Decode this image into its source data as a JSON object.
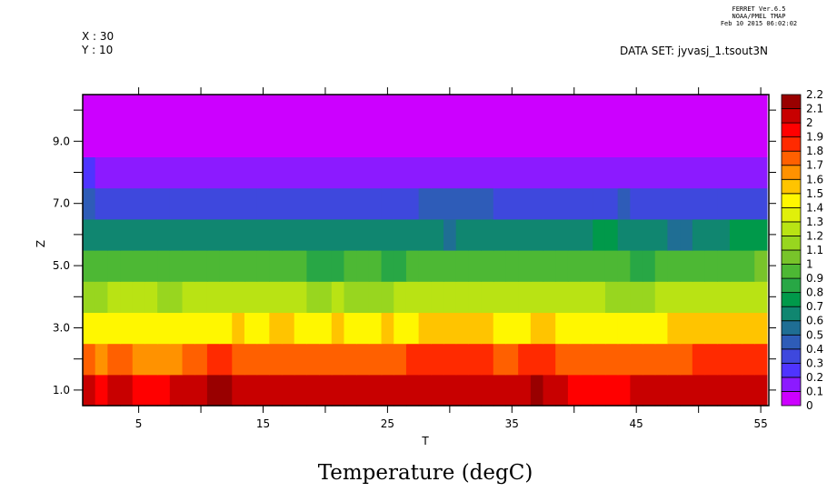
{
  "header": {
    "ferret_lines": [
      "FERRET  Ver.6.5",
      "NOAA/PMEL TMAP",
      "Feb 10 2015 06:02:02"
    ],
    "x_label": "X : 30",
    "y_label": "Y : 10",
    "dataset": "DATA SET: jyvasj_1.tsout3N"
  },
  "chart_data": {
    "type": "heatmap",
    "title": "Temperature (degC)",
    "xlabel": "T",
    "ylabel": "Z",
    "xlim": [
      0.5,
      55.65
    ],
    "ylim": [
      0.5,
      10.5
    ],
    "x_ticks": [
      5,
      15,
      25,
      35,
      45,
      55
    ],
    "x_tick_labels": [
      "5",
      "15",
      "25",
      "35",
      "45",
      "55"
    ],
    "x_minor_ticks": [
      10,
      20,
      30,
      40,
      50
    ],
    "y_ticks": [
      1,
      3,
      5,
      7,
      9
    ],
    "y_tick_labels": [
      "1.0",
      "3.0",
      "5.0",
      "7.0",
      "9.0"
    ],
    "y_minor_ticks": [
      2,
      4,
      6,
      8,
      10
    ],
    "x": "T = 1..55",
    "z_levels": [
      1,
      2,
      3,
      4,
      5,
      6,
      7,
      8,
      9,
      10
    ],
    "rows_run_length_note": "each row = [value, count] runs along T from 1 to 55",
    "rows": [
      [
        [
          2.05,
          1
        ],
        [
          1.95,
          1
        ],
        [
          2.05,
          2
        ],
        [
          1.95,
          3
        ],
        [
          2.05,
          3
        ],
        [
          2.15,
          2
        ],
        [
          2.05,
          24
        ],
        [
          2.15,
          1
        ],
        [
          2.05,
          2
        ],
        [
          1.95,
          5
        ],
        [
          2.05,
          11
        ]
      ],
      [
        [
          1.75,
          1
        ],
        [
          1.65,
          1
        ],
        [
          1.75,
          2
        ],
        [
          1.65,
          4
        ],
        [
          1.75,
          2
        ],
        [
          1.85,
          2
        ],
        [
          1.75,
          14
        ],
        [
          1.85,
          7
        ],
        [
          1.75,
          2
        ],
        [
          1.85,
          3
        ],
        [
          1.75,
          11
        ],
        [
          1.85,
          6
        ]
      ],
      [
        [
          1.45,
          12
        ],
        [
          1.55,
          1
        ],
        [
          1.45,
          2
        ],
        [
          1.55,
          2
        ],
        [
          1.45,
          3
        ],
        [
          1.55,
          1
        ],
        [
          1.45,
          3
        ],
        [
          1.55,
          1
        ],
        [
          1.45,
          2
        ],
        [
          1.55,
          6
        ],
        [
          1.45,
          3
        ],
        [
          1.55,
          2
        ],
        [
          1.45,
          9
        ],
        [
          1.55,
          8
        ]
      ],
      [
        [
          1.15,
          2
        ],
        [
          1.25,
          4
        ],
        [
          1.15,
          2
        ],
        [
          1.25,
          10
        ],
        [
          1.15,
          2
        ],
        [
          1.25,
          1
        ],
        [
          1.15,
          4
        ],
        [
          1.25,
          17
        ],
        [
          1.15,
          4
        ],
        [
          1.25,
          9
        ]
      ],
      [
        [
          0.95,
          18
        ],
        [
          0.85,
          3
        ],
        [
          0.95,
          3
        ],
        [
          0.85,
          2
        ],
        [
          0.95,
          18
        ],
        [
          0.85,
          2
        ],
        [
          0.95,
          8
        ],
        [
          1.05,
          1
        ]
      ],
      [
        [
          0.65,
          29
        ],
        [
          0.55,
          1
        ],
        [
          0.65,
          11
        ],
        [
          0.75,
          2
        ],
        [
          0.65,
          4
        ],
        [
          0.55,
          2
        ],
        [
          0.65,
          3
        ],
        [
          0.75,
          3
        ]
      ],
      [
        [
          0.45,
          1
        ],
        [
          0.35,
          26
        ],
        [
          0.45,
          6
        ],
        [
          0.35,
          10
        ],
        [
          0.45,
          1
        ],
        [
          0.35,
          11
        ]
      ],
      [
        [
          0.25,
          1
        ],
        [
          0.15,
          54
        ]
      ],
      [
        [
          0.05,
          55
        ]
      ],
      [
        [
          0.05,
          55
        ]
      ]
    ],
    "colorbar": {
      "levels": [
        0,
        0.1,
        0.2,
        0.3,
        0.4,
        0.5,
        0.6,
        0.7,
        0.8,
        0.9,
        1,
        1.1,
        1.2,
        1.3,
        1.4,
        1.5,
        1.6,
        1.7,
        1.8,
        1.9,
        2,
        2.1,
        2.2
      ],
      "labels": [
        "0",
        "0.1",
        "0.2",
        "0.3",
        "0.4",
        "0.5",
        "0.6",
        "0.7",
        "0.8",
        "0.9",
        "1",
        "1.1",
        "1.2",
        "1.3",
        "1.4",
        "1.5",
        "1.6",
        "1.7",
        "1.8",
        "1.9",
        "2",
        "2.1",
        "2.2"
      ],
      "colors": [
        "#cc00ff",
        "#8c1aff",
        "#4f34ff",
        "#3e48dd",
        "#2e5cb8",
        "#1f6e94",
        "#108670",
        "#00994a",
        "#28a745",
        "#4db834",
        "#78c42a",
        "#98d61f",
        "#b9e314",
        "#e0f00a",
        "#fff700",
        "#ffc400",
        "#ff9200",
        "#ff6000",
        "#ff2a00",
        "#ff0000",
        "#c80000",
        "#990000"
      ]
    }
  }
}
